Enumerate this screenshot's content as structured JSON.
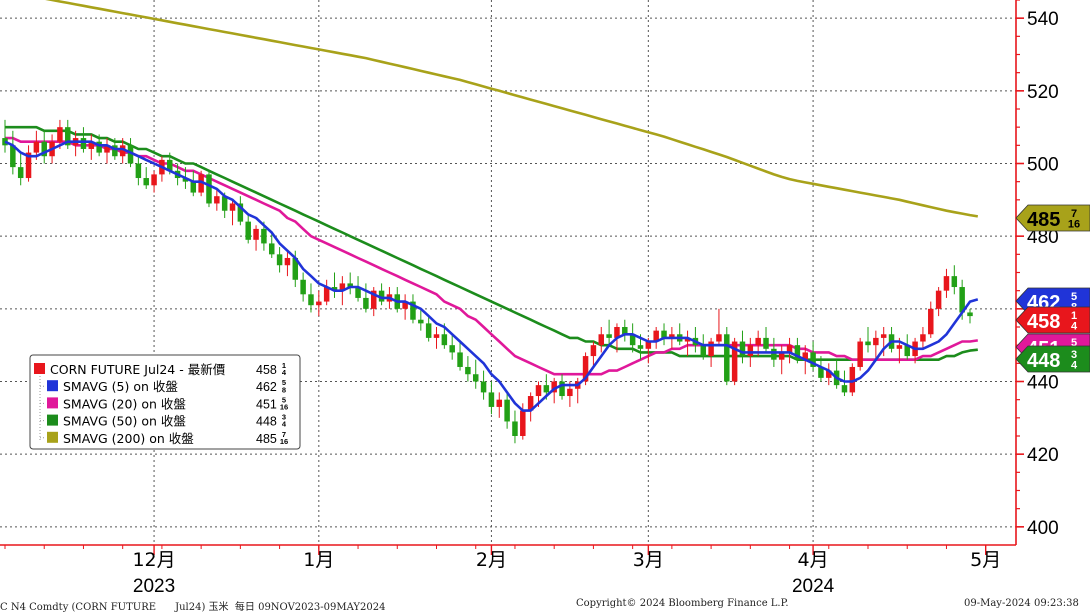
{
  "footer": {
    "ticker": "C N4 Comdty (CORN FUTURE      Jul24) 玉米  每日 09NOV2023-09MAY2024",
    "copyright": "Copyright© 2024 Bloomberg Finance L.P.",
    "timestamp": "09-May-2024 09:23:38"
  },
  "chart_data": {
    "type": "candlestick",
    "ylim": [
      395,
      545
    ],
    "yticks": [
      400,
      420,
      440,
      460,
      480,
      500,
      520,
      540
    ],
    "x_ticks": [
      {
        "label": "12月",
        "year": "2023",
        "i": 19
      },
      {
        "label": "1月",
        "i": 40
      },
      {
        "label": "2月",
        "i": 62
      },
      {
        "label": "3月",
        "i": 82
      },
      {
        "label": "4月",
        "year": "2024",
        "i": 103
      },
      {
        "label": "5月",
        "i": 125
      }
    ],
    "colors": {
      "up": "#e8161c",
      "down": "#22a016",
      "sma5": "#2034d8",
      "sma20": "#e0189a",
      "sma50": "#1c8c1c",
      "sma200": "#a8a21a"
    },
    "legend": [
      {
        "name": "CORN FUTURE Jul24 - 最新價",
        "value": "458",
        "frac": "1/4",
        "color": "#e8161c"
      },
      {
        "name": "SMAVG (5)  on 收盤",
        "value": "462",
        "frac": "5/8",
        "color": "#2034d8"
      },
      {
        "name": "SMAVG (20)  on 收盤",
        "value": "451",
        "frac": "5/16",
        "color": "#e0189a"
      },
      {
        "name": "SMAVG (50)  on 收盤",
        "value": "448",
        "frac": "3/4",
        "color": "#1c8c1c"
      },
      {
        "name": "SMAVG (200)  on 收盤",
        "value": "485",
        "frac": "7/16",
        "color": "#a8a21a"
      }
    ],
    "value_tags": [
      {
        "value": "485",
        "frac": "7/16",
        "y": 485.44,
        "color": "#a8a21a",
        "text": "#000000"
      },
      {
        "value": "462",
        "frac": "5/8",
        "y": 462.63,
        "color": "#2034d8",
        "text": "#ffffff"
      },
      {
        "value": "458",
        "frac": "1/4",
        "y": 458.25,
        "color": "#e8161c",
        "text": "#ffffff"
      },
      {
        "value": "451",
        "frac": "5/16",
        "y": 451.31,
        "color": "#e0189a",
        "text": "#ffffff"
      },
      {
        "value": "448",
        "frac": "3/4",
        "y": 448.75,
        "color": "#1c8c1c",
        "text": "#ffffff"
      }
    ],
    "ohlc": [
      [
        507,
        512,
        503,
        505
      ],
      [
        505,
        509,
        497,
        499
      ],
      [
        499,
        503,
        494,
        496
      ],
      [
        496,
        505,
        495,
        503
      ],
      [
        503,
        509,
        501,
        506
      ],
      [
        506,
        509,
        500,
        502
      ],
      [
        502,
        508,
        500,
        506
      ],
      [
        506,
        512,
        504,
        510
      ],
      [
        510,
        512,
        504,
        505
      ],
      [
        505,
        509,
        502,
        507
      ],
      [
        507,
        510,
        503,
        504
      ],
      [
        504,
        508,
        501,
        506
      ],
      [
        506,
        508,
        502,
        503
      ],
      [
        503,
        507,
        500,
        505
      ],
      [
        505,
        507,
        501,
        502
      ],
      [
        502,
        507,
        500,
        505
      ],
      [
        505,
        507,
        499,
        500
      ],
      [
        500,
        502,
        494,
        496
      ],
      [
        496,
        499,
        493,
        494
      ],
      [
        494,
        498,
        492,
        497
      ],
      [
        497,
        502,
        495,
        501
      ],
      [
        501,
        503,
        497,
        498
      ],
      [
        498,
        500,
        494,
        496
      ],
      [
        496,
        499,
        493,
        495
      ],
      [
        495,
        498,
        491,
        492
      ],
      [
        492,
        498,
        491,
        497
      ],
      [
        497,
        498,
        488,
        489
      ],
      [
        489,
        493,
        487,
        491
      ],
      [
        491,
        492,
        485,
        487
      ],
      [
        487,
        490,
        483,
        489
      ],
      [
        489,
        491,
        483,
        484
      ],
      [
        484,
        486,
        478,
        479
      ],
      [
        479,
        483,
        476,
        482
      ],
      [
        482,
        484,
        476,
        478
      ],
      [
        478,
        481,
        474,
        475
      ],
      [
        475,
        477,
        470,
        472
      ],
      [
        472,
        476,
        469,
        474
      ],
      [
        474,
        476,
        466,
        468
      ],
      [
        468,
        470,
        462,
        464
      ],
      [
        464,
        467,
        459,
        461
      ],
      [
        461,
        465,
        458,
        462
      ],
      [
        462,
        468,
        461,
        466
      ],
      [
        466,
        470,
        463,
        465
      ],
      [
        465,
        469,
        461,
        467
      ],
      [
        467,
        470,
        464,
        466
      ],
      [
        466,
        469,
        462,
        463
      ],
      [
        463,
        467,
        459,
        460
      ],
      [
        460,
        466,
        458,
        465
      ],
      [
        465,
        467,
        461,
        462
      ],
      [
        462,
        466,
        460,
        464
      ],
      [
        464,
        466,
        459,
        460
      ],
      [
        460,
        464,
        457,
        462
      ],
      [
        462,
        464,
        456,
        457
      ],
      [
        457,
        460,
        454,
        456
      ],
      [
        456,
        458,
        451,
        452
      ],
      [
        452,
        455,
        449,
        453
      ],
      [
        453,
        456,
        449,
        450
      ],
      [
        450,
        453,
        446,
        448
      ],
      [
        448,
        451,
        443,
        444
      ],
      [
        444,
        447,
        440,
        442
      ],
      [
        442,
        446,
        438,
        440
      ],
      [
        440,
        443,
        435,
        437
      ],
      [
        437,
        440,
        431,
        433
      ],
      [
        433,
        437,
        430,
        435
      ],
      [
        435,
        437,
        427,
        429
      ],
      [
        429,
        432,
        423,
        425
      ],
      [
        425,
        434,
        424,
        432
      ],
      [
        432,
        437,
        429,
        436
      ],
      [
        436,
        440,
        433,
        439
      ],
      [
        439,
        442,
        435,
        437
      ],
      [
        437,
        441,
        434,
        440
      ],
      [
        440,
        442,
        435,
        436
      ],
      [
        436,
        440,
        433,
        438
      ],
      [
        438,
        441,
        434,
        440
      ],
      [
        440,
        448,
        439,
        447
      ],
      [
        447,
        451,
        444,
        450
      ],
      [
        450,
        455,
        448,
        453
      ],
      [
        453,
        457,
        450,
        452
      ],
      [
        452,
        456,
        448,
        455
      ],
      [
        455,
        457,
        451,
        453
      ],
      [
        453,
        456,
        448,
        450
      ],
      [
        450,
        453,
        446,
        449
      ],
      [
        449,
        452,
        445,
        451
      ],
      [
        451,
        455,
        449,
        454
      ],
      [
        454,
        456,
        450,
        452
      ],
      [
        452,
        455,
        449,
        453
      ],
      [
        453,
        456,
        450,
        451
      ],
      [
        451,
        454,
        447,
        452
      ],
      [
        452,
        455,
        448,
        450
      ],
      [
        450,
        453,
        446,
        447
      ],
      [
        447,
        452,
        444,
        451
      ],
      [
        451,
        460,
        450,
        453
      ],
      [
        453,
        455,
        439,
        440
      ],
      [
        440,
        452,
        439,
        451
      ],
      [
        451,
        454,
        445,
        447
      ],
      [
        447,
        452,
        444,
        450
      ],
      [
        450,
        454,
        447,
        452
      ],
      [
        452,
        455,
        448,
        449
      ],
      [
        449,
        452,
        444,
        446
      ],
      [
        446,
        450,
        442,
        448
      ],
      [
        448,
        452,
        445,
        450
      ],
      [
        450,
        452,
        445,
        446
      ],
      [
        446,
        450,
        442,
        448
      ],
      [
        448,
        451,
        443,
        444
      ],
      [
        444,
        447,
        440,
        441
      ],
      [
        441,
        445,
        439,
        443
      ],
      [
        443,
        446,
        438,
        439
      ],
      [
        439,
        443,
        436,
        437
      ],
      [
        437,
        445,
        436,
        444
      ],
      [
        444,
        452,
        443,
        451
      ],
      [
        451,
        455,
        448,
        450
      ],
      [
        450,
        454,
        446,
        452
      ],
      [
        452,
        455,
        447,
        453
      ],
      [
        453,
        455,
        448,
        449
      ],
      [
        449,
        452,
        445,
        450
      ],
      [
        450,
        453,
        446,
        447
      ],
      [
        447,
        452,
        445,
        451
      ],
      [
        451,
        455,
        449,
        453
      ],
      [
        453,
        462,
        452,
        460
      ],
      [
        460,
        466,
        458,
        465
      ],
      [
        465,
        471,
        463,
        469
      ],
      [
        469,
        472,
        464,
        466
      ],
      [
        466,
        468,
        457,
        459
      ],
      [
        459,
        460,
        456,
        458
      ]
    ],
    "sma5": [
      506,
      505,
      503,
      502,
      502,
      503,
      504,
      505,
      506,
      506,
      506,
      506,
      505,
      505,
      504,
      504,
      503,
      502,
      501,
      500,
      499,
      498,
      497,
      496,
      495,
      495,
      494,
      493,
      491,
      490,
      488,
      486,
      485,
      483,
      481,
      478,
      476,
      474,
      471,
      469,
      467,
      466,
      465,
      465,
      466,
      466,
      465,
      464,
      463,
      463,
      462,
      462,
      461,
      460,
      458,
      456,
      455,
      453,
      451,
      449,
      447,
      445,
      442,
      440,
      437,
      434,
      432,
      432,
      434,
      436,
      438,
      439,
      439,
      439,
      441,
      444,
      447,
      450,
      452,
      453,
      453,
      452,
      451,
      451,
      452,
      452,
      452,
      452,
      451,
      450,
      450,
      450,
      450,
      449,
      448,
      448,
      448,
      448,
      448,
      448,
      448,
      447,
      446,
      445,
      444,
      443,
      441,
      440,
      440,
      441,
      443,
      446,
      449,
      451,
      451,
      450,
      449,
      449,
      450,
      451,
      453,
      456,
      459,
      462,
      462.6
    ],
    "sma20": [
      507,
      507,
      506,
      506,
      506,
      506,
      506,
      506,
      506,
      505,
      505,
      505,
      505,
      504,
      504,
      503,
      503,
      502,
      502,
      501,
      500,
      500,
      499,
      498,
      498,
      497,
      496,
      495,
      494,
      493,
      492,
      491,
      490,
      489,
      488,
      487,
      485,
      484,
      482,
      480,
      479,
      478,
      477,
      476,
      475,
      474,
      473,
      472,
      471,
      470,
      469,
      468,
      467,
      466,
      465,
      464,
      462,
      461,
      460,
      458,
      457,
      455,
      453,
      451,
      449,
      447,
      446,
      445,
      444,
      443,
      442,
      442,
      442,
      442,
      442,
      442,
      442,
      443,
      443,
      444,
      445,
      446,
      447,
      448,
      448,
      449,
      449,
      450,
      450,
      450,
      450,
      450,
      450,
      450,
      450,
      450,
      450,
      450,
      450,
      450,
      450,
      449,
      449,
      448,
      448,
      448,
      447,
      447,
      446,
      446,
      446,
      446,
      446,
      446,
      446,
      446,
      446,
      447,
      447,
      448,
      449,
      450,
      451,
      451,
      451.3
    ],
    "sma50": [
      510,
      510,
      510,
      510,
      510,
      509,
      509,
      509,
      509,
      508,
      508,
      508,
      507,
      507,
      506,
      506,
      505,
      504,
      504,
      503,
      502,
      502,
      501,
      500,
      500,
      499,
      498,
      497,
      496,
      495,
      494,
      493,
      492,
      491,
      490,
      489,
      488,
      487,
      486,
      485,
      484,
      483,
      482,
      481,
      480,
      479,
      478,
      477,
      476,
      475,
      474,
      473,
      472,
      471,
      470,
      469,
      468,
      467,
      466,
      465,
      464,
      463,
      462,
      461,
      460,
      459,
      458,
      457,
      456,
      455,
      454,
      453,
      452,
      452,
      451,
      451,
      450,
      450,
      449,
      449,
      449,
      448,
      448,
      448,
      448,
      448,
      447,
      447,
      447,
      447,
      447,
      447,
      447,
      447,
      447,
      447,
      447,
      447,
      447,
      447,
      447,
      446,
      446,
      446,
      446,
      446,
      446,
      446,
      446,
      446,
      446,
      446,
      446,
      446,
      446,
      446,
      446,
      446,
      446,
      446,
      447,
      447,
      448,
      448.5,
      448.75
    ],
    "sma200": [
      548,
      547,
      546.6,
      546.2,
      545.8,
      545.4,
      545,
      544.6,
      544.2,
      543.8,
      543.4,
      543,
      542.6,
      542.2,
      541.8,
      541.4,
      541,
      540.6,
      540.2,
      539.8,
      539.4,
      539,
      538.6,
      538.2,
      537.8,
      537.4,
      537,
      536.6,
      536.2,
      535.8,
      535.4,
      535,
      534.6,
      534.2,
      533.8,
      533.4,
      533,
      532.6,
      532.2,
      531.8,
      531.4,
      531,
      530.6,
      530.2,
      529.8,
      529.4,
      529,
      528.5,
      528,
      527.5,
      527,
      526.5,
      526,
      525.5,
      525,
      524.5,
      524,
      523.5,
      523,
      522.4,
      521.8,
      521.2,
      520.6,
      520,
      519.4,
      518.8,
      518.2,
      517.6,
      517,
      516.4,
      515.8,
      515.2,
      514.6,
      514,
      513.4,
      512.8,
      512.2,
      511.6,
      511,
      510.4,
      509.8,
      509.2,
      508.6,
      508,
      507.4,
      506.7,
      506,
      505.3,
      504.6,
      503.9,
      503.2,
      502.5,
      501.8,
      501,
      500.2,
      499.4,
      498.6,
      497.8,
      497,
      496.3,
      495.7,
      495.2,
      494.8,
      494.4,
      494,
      493.6,
      493.2,
      492.8,
      492.4,
      492,
      491.6,
      491.2,
      490.8,
      490.4,
      490,
      489.5,
      489,
      488.5,
      488,
      487.5,
      487,
      486.6,
      486.2,
      485.8,
      485.44
    ]
  }
}
